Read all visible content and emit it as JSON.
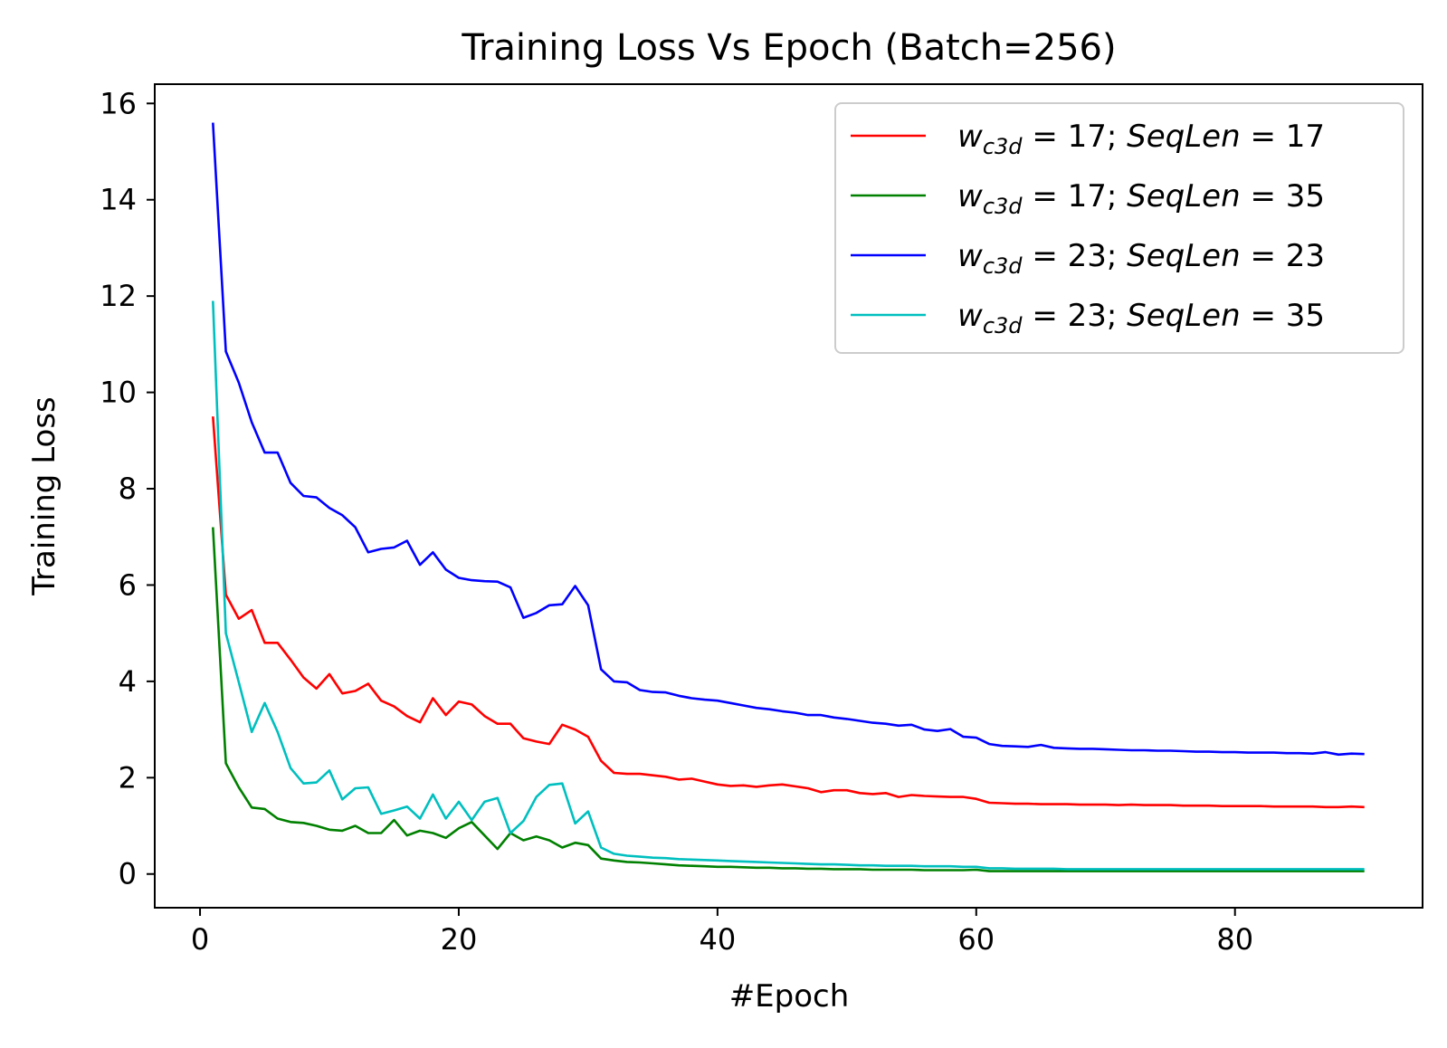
{
  "chart_data": {
    "type": "line",
    "title": "Training Loss Vs Epoch (Batch=256)",
    "xlabel": "#Epoch",
    "ylabel": "Training Loss",
    "xlim": [
      -3.5,
      94.5
    ],
    "ylim": [
      -0.7,
      16.4
    ],
    "xticks": [
      0,
      20,
      40,
      60,
      80
    ],
    "yticks": [
      0,
      2,
      4,
      6,
      8,
      10,
      12,
      14,
      16
    ],
    "grid": false,
    "legend_position": "top-right",
    "x": [
      1,
      2,
      3,
      4,
      5,
      6,
      7,
      8,
      9,
      10,
      11,
      12,
      13,
      14,
      15,
      16,
      17,
      18,
      19,
      20,
      21,
      22,
      23,
      24,
      25,
      26,
      27,
      28,
      29,
      30,
      31,
      32,
      33,
      34,
      35,
      36,
      37,
      38,
      39,
      40,
      41,
      42,
      43,
      44,
      45,
      46,
      47,
      48,
      49,
      50,
      51,
      52,
      53,
      54,
      55,
      56,
      57,
      58,
      59,
      60,
      61,
      62,
      63,
      64,
      65,
      66,
      67,
      68,
      69,
      70,
      71,
      72,
      73,
      74,
      75,
      76,
      77,
      78,
      79,
      80,
      81,
      82,
      83,
      84,
      85,
      86,
      87,
      88,
      89,
      90
    ],
    "series": [
      {
        "name": "w_c3d = 17; SeqLen = 17",
        "legend": {
          "w": "w",
          "sub": "c3d",
          "val": " = 17; ",
          "var": "SeqLen",
          "val2": " = 17"
        },
        "color": "#ff0000",
        "values": [
          9.5,
          5.8,
          5.3,
          5.48,
          4.8,
          4.8,
          4.45,
          4.08,
          3.85,
          4.15,
          3.75,
          3.8,
          3.95,
          3.6,
          3.48,
          3.28,
          3.15,
          3.65,
          3.3,
          3.58,
          3.52,
          3.28,
          3.12,
          3.12,
          2.82,
          2.75,
          2.7,
          3.1,
          3.0,
          2.85,
          2.35,
          2.1,
          2.08,
          2.08,
          2.05,
          2.02,
          1.96,
          1.98,
          1.92,
          1.86,
          1.83,
          1.84,
          1.81,
          1.84,
          1.86,
          1.82,
          1.78,
          1.7,
          1.74,
          1.74,
          1.68,
          1.66,
          1.68,
          1.6,
          1.64,
          1.62,
          1.61,
          1.6,
          1.6,
          1.56,
          1.48,
          1.47,
          1.46,
          1.46,
          1.45,
          1.45,
          1.45,
          1.44,
          1.44,
          1.44,
          1.43,
          1.44,
          1.43,
          1.43,
          1.43,
          1.42,
          1.42,
          1.42,
          1.41,
          1.41,
          1.41,
          1.41,
          1.4,
          1.4,
          1.4,
          1.4,
          1.39,
          1.39,
          1.4,
          1.39
        ]
      },
      {
        "name": "w_c3d = 17; SeqLen = 35",
        "legend": {
          "w": "w",
          "sub": "c3d",
          "val": " = 17; ",
          "var": "SeqLen",
          "val2": " = 35"
        },
        "color": "#008000",
        "values": [
          7.2,
          2.3,
          1.8,
          1.38,
          1.35,
          1.15,
          1.08,
          1.06,
          1.0,
          0.92,
          0.9,
          1.0,
          0.85,
          0.85,
          1.12,
          0.8,
          0.9,
          0.85,
          0.75,
          0.95,
          1.08,
          0.8,
          0.52,
          0.85,
          0.7,
          0.78,
          0.7,
          0.55,
          0.65,
          0.6,
          0.32,
          0.28,
          0.25,
          0.24,
          0.22,
          0.2,
          0.18,
          0.17,
          0.16,
          0.15,
          0.15,
          0.14,
          0.13,
          0.13,
          0.12,
          0.12,
          0.11,
          0.11,
          0.1,
          0.1,
          0.1,
          0.09,
          0.09,
          0.09,
          0.09,
          0.08,
          0.08,
          0.08,
          0.08,
          0.09,
          0.06,
          0.06,
          0.06,
          0.06,
          0.06,
          0.06,
          0.06,
          0.06,
          0.06,
          0.06,
          0.06,
          0.06,
          0.06,
          0.06,
          0.06,
          0.06,
          0.06,
          0.06,
          0.06,
          0.06,
          0.06,
          0.06,
          0.06,
          0.06,
          0.06,
          0.06,
          0.06,
          0.06,
          0.06,
          0.06
        ]
      },
      {
        "name": "w_c3d = 23; SeqLen = 23",
        "legend": {
          "w": "w",
          "sub": "c3d",
          "val": " = 23; ",
          "var": "SeqLen",
          "val2": " = 23"
        },
        "color": "#0000ff",
        "values": [
          15.6,
          10.85,
          10.2,
          9.38,
          8.75,
          8.75,
          8.12,
          7.85,
          7.82,
          7.6,
          7.45,
          7.2,
          6.68,
          6.75,
          6.78,
          6.92,
          6.42,
          6.68,
          6.32,
          6.15,
          6.1,
          6.08,
          6.07,
          5.95,
          5.32,
          5.42,
          5.58,
          5.6,
          5.98,
          5.58,
          4.25,
          4.0,
          3.98,
          3.82,
          3.78,
          3.77,
          3.7,
          3.65,
          3.62,
          3.6,
          3.55,
          3.5,
          3.45,
          3.42,
          3.38,
          3.35,
          3.3,
          3.3,
          3.25,
          3.22,
          3.18,
          3.14,
          3.12,
          3.08,
          3.1,
          3.0,
          2.97,
          3.01,
          2.85,
          2.83,
          2.7,
          2.66,
          2.65,
          2.64,
          2.68,
          2.62,
          2.61,
          2.6,
          2.6,
          2.59,
          2.58,
          2.57,
          2.57,
          2.56,
          2.56,
          2.55,
          2.54,
          2.54,
          2.53,
          2.53,
          2.52,
          2.52,
          2.52,
          2.51,
          2.51,
          2.5,
          2.53,
          2.48,
          2.5,
          2.49
        ]
      },
      {
        "name": "w_c3d = 23; SeqLen = 35",
        "legend": {
          "w": "w",
          "sub": "c3d",
          "val": " = 23; ",
          "var": "SeqLen",
          "val2": " = 35"
        },
        "color": "#00bfbf",
        "values": [
          11.9,
          5.0,
          3.98,
          2.95,
          3.55,
          2.95,
          2.2,
          1.88,
          1.9,
          2.15,
          1.55,
          1.78,
          1.8,
          1.25,
          1.32,
          1.4,
          1.15,
          1.65,
          1.15,
          1.5,
          1.12,
          1.5,
          1.58,
          0.85,
          1.1,
          1.6,
          1.85,
          1.88,
          1.05,
          1.3,
          0.55,
          0.42,
          0.38,
          0.36,
          0.34,
          0.33,
          0.31,
          0.3,
          0.29,
          0.28,
          0.27,
          0.26,
          0.25,
          0.24,
          0.23,
          0.22,
          0.21,
          0.2,
          0.2,
          0.19,
          0.18,
          0.18,
          0.17,
          0.17,
          0.17,
          0.16,
          0.16,
          0.16,
          0.15,
          0.15,
          0.12,
          0.12,
          0.11,
          0.11,
          0.11,
          0.11,
          0.1,
          0.1,
          0.1,
          0.1,
          0.1,
          0.1,
          0.1,
          0.1,
          0.1,
          0.1,
          0.1,
          0.1,
          0.1,
          0.1,
          0.1,
          0.1,
          0.1,
          0.1,
          0.1,
          0.1,
          0.1,
          0.1,
          0.1,
          0.1
        ]
      }
    ]
  }
}
